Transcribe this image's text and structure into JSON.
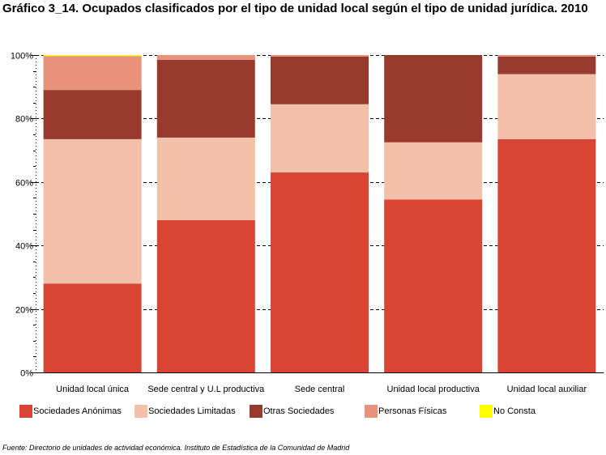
{
  "title": "Gráfico 3_14. Ocupados clasificados por el tipo de unidad local según el tipo de unidad jurídica. 2010",
  "source": "Fuente: Directorio de unidades de actividad económica. Instituto de Estadística de la Comunidad de Madrid",
  "chart_data": {
    "type": "bar",
    "stacked": true,
    "percent": true,
    "categories": [
      "Unidad local única",
      "Sede central y U.L productiva",
      "Sede central",
      "Unidad local productiva",
      "Unidad local auxiliar"
    ],
    "series": [
      {
        "name": "Sociedades Anónimas",
        "color": "#d94533",
        "values": [
          28,
          48,
          63,
          54.5,
          73.5
        ]
      },
      {
        "name": "Sociedades Limitadas",
        "color": "#f3c1aa",
        "values": [
          45.5,
          26,
          21.5,
          18,
          20.5
        ]
      },
      {
        "name": "Otras Sociedades",
        "color": "#993a2e",
        "values": [
          15.5,
          24.5,
          15,
          27.5,
          5.5
        ]
      },
      {
        "name": "Personas Físicas",
        "color": "#e8927c",
        "values": [
          10.7,
          1.5,
          0.5,
          0,
          0.5
        ]
      },
      {
        "name": "No Consta",
        "color": "#ffff00",
        "values": [
          0.3,
          0,
          0,
          0,
          0
        ]
      }
    ],
    "yticks": [
      "0%",
      "20%",
      "40%",
      "60%",
      "80%",
      "100%"
    ],
    "ylim": [
      0,
      100
    ],
    "grid": true,
    "legend": "bottom"
  }
}
